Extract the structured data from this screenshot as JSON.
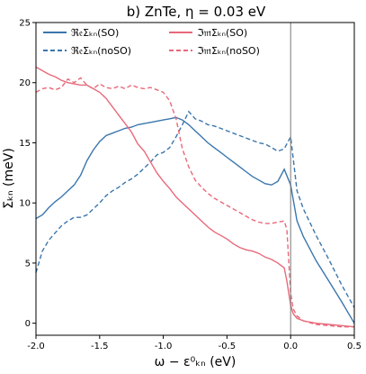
{
  "chart_data": {
    "type": "line",
    "title": "b) ZnTe, η = 0.03 eV",
    "xlabel": "ω − ε⁰ₖₙ (eV)",
    "ylabel": "Σₖₙ (meV)",
    "xlim": [
      -2.0,
      0.5
    ],
    "ylim": [
      -1,
      25
    ],
    "xticks": [
      "-2.0",
      "-1.5",
      "-1.0",
      "-0.5",
      "0.0",
      "0.5"
    ],
    "yticks": [
      "0",
      "5",
      "10",
      "15",
      "20",
      "25"
    ],
    "vline_x": 0.0,
    "grid": false,
    "legend_position": "top",
    "series": [
      {
        "name": "ℜ𝔢Σₖₙ(SO)",
        "color": "#3a76ad",
        "dash": "solid",
        "x": [
          -2.0,
          -1.95,
          -1.9,
          -1.85,
          -1.8,
          -1.75,
          -1.7,
          -1.65,
          -1.6,
          -1.55,
          -1.5,
          -1.45,
          -1.4,
          -1.35,
          -1.3,
          -1.25,
          -1.2,
          -1.15,
          -1.1,
          -1.05,
          -1.0,
          -0.95,
          -0.9,
          -0.85,
          -0.8,
          -0.75,
          -0.7,
          -0.65,
          -0.6,
          -0.55,
          -0.5,
          -0.45,
          -0.4,
          -0.35,
          -0.3,
          -0.25,
          -0.2,
          -0.15,
          -0.1,
          -0.05,
          0.0,
          0.05,
          0.1,
          0.2,
          0.3,
          0.4,
          0.5
        ],
        "values": [
          8.7,
          9.0,
          9.6,
          10.1,
          10.5,
          11.0,
          11.5,
          12.3,
          13.5,
          14.4,
          15.1,
          15.6,
          15.8,
          16.0,
          16.2,
          16.3,
          16.5,
          16.6,
          16.7,
          16.8,
          16.9,
          17.0,
          17.1,
          16.9,
          16.5,
          16.0,
          15.5,
          15.0,
          14.6,
          14.2,
          13.8,
          13.4,
          13.0,
          12.6,
          12.2,
          11.9,
          11.6,
          11.5,
          11.8,
          12.8,
          11.5,
          8.5,
          7.2,
          5.2,
          3.5,
          1.8,
          0.0
        ]
      },
      {
        "name": "ℜ𝔢Σₖₙ(noSO)",
        "color": "#3a76ad",
        "dash": "dashed",
        "x": [
          -2.0,
          -1.95,
          -1.9,
          -1.85,
          -1.8,
          -1.75,
          -1.7,
          -1.65,
          -1.6,
          -1.55,
          -1.5,
          -1.45,
          -1.4,
          -1.35,
          -1.3,
          -1.25,
          -1.2,
          -1.15,
          -1.1,
          -1.05,
          -1.0,
          -0.95,
          -0.9,
          -0.85,
          -0.8,
          -0.75,
          -0.7,
          -0.65,
          -0.6,
          -0.55,
          -0.5,
          -0.45,
          -0.4,
          -0.35,
          -0.3,
          -0.25,
          -0.2,
          -0.15,
          -0.1,
          -0.05,
          0.0,
          0.05,
          0.1,
          0.2,
          0.3,
          0.4,
          0.5
        ],
        "values": [
          4.2,
          6.0,
          6.9,
          7.5,
          8.1,
          8.5,
          8.8,
          8.8,
          9.0,
          9.5,
          10.0,
          10.6,
          11.0,
          11.3,
          11.7,
          12.0,
          12.4,
          12.9,
          13.4,
          14.0,
          14.2,
          14.6,
          15.5,
          16.5,
          17.6,
          17.0,
          16.8,
          16.5,
          16.4,
          16.2,
          16.0,
          15.8,
          15.6,
          15.4,
          15.2,
          15.0,
          14.9,
          14.6,
          14.3,
          14.5,
          15.5,
          11.0,
          9.5,
          7.3,
          5.3,
          3.2,
          1.3
        ]
      },
      {
        "name": "ℑ𝔪Σₖₙ(SO)",
        "color": "#e8697a",
        "dash": "solid",
        "x": [
          -2.0,
          -1.95,
          -1.9,
          -1.85,
          -1.8,
          -1.75,
          -1.7,
          -1.65,
          -1.6,
          -1.55,
          -1.5,
          -1.45,
          -1.4,
          -1.35,
          -1.3,
          -1.25,
          -1.2,
          -1.15,
          -1.1,
          -1.05,
          -1.0,
          -0.95,
          -0.9,
          -0.85,
          -0.8,
          -0.75,
          -0.7,
          -0.65,
          -0.6,
          -0.55,
          -0.5,
          -0.45,
          -0.4,
          -0.35,
          -0.3,
          -0.25,
          -0.2,
          -0.15,
          -0.1,
          -0.05,
          -0.03,
          0.0,
          0.02,
          0.05,
          0.1,
          0.2,
          0.3,
          0.4,
          0.5
        ],
        "values": [
          21.3,
          21.0,
          20.7,
          20.5,
          20.2,
          20.0,
          19.9,
          19.8,
          19.8,
          19.5,
          19.2,
          18.7,
          18.0,
          17.3,
          16.6,
          15.9,
          14.9,
          14.3,
          13.4,
          12.5,
          11.8,
          11.2,
          10.5,
          10.0,
          9.5,
          9.0,
          8.5,
          8.0,
          7.6,
          7.3,
          7.0,
          6.6,
          6.3,
          6.1,
          6.0,
          5.8,
          5.5,
          5.3,
          5.0,
          4.6,
          3.5,
          1.5,
          0.8,
          0.4,
          0.2,
          0.0,
          -0.1,
          -0.2,
          -0.3
        ]
      },
      {
        "name": "ℑ𝔪Σₖₙ(noSO)",
        "color": "#e8697a",
        "dash": "dashed",
        "x": [
          -2.0,
          -1.95,
          -1.9,
          -1.85,
          -1.8,
          -1.75,
          -1.7,
          -1.65,
          -1.6,
          -1.55,
          -1.5,
          -1.45,
          -1.4,
          -1.35,
          -1.3,
          -1.25,
          -1.2,
          -1.15,
          -1.1,
          -1.05,
          -1.0,
          -0.95,
          -0.9,
          -0.85,
          -0.8,
          -0.75,
          -0.7,
          -0.65,
          -0.6,
          -0.55,
          -0.5,
          -0.45,
          -0.4,
          -0.35,
          -0.3,
          -0.25,
          -0.2,
          -0.15,
          -0.1,
          -0.05,
          -0.03,
          0.0,
          0.02,
          0.05,
          0.1,
          0.2,
          0.3,
          0.4,
          0.5
        ],
        "values": [
          19.2,
          19.5,
          19.6,
          19.4,
          19.6,
          20.3,
          20.0,
          20.4,
          19.8,
          19.5,
          19.9,
          19.6,
          19.5,
          19.7,
          19.5,
          19.8,
          19.6,
          19.5,
          19.6,
          19.4,
          19.2,
          18.5,
          17.0,
          14.5,
          13.0,
          11.9,
          11.3,
          10.8,
          10.4,
          10.1,
          9.8,
          9.5,
          9.2,
          8.9,
          8.6,
          8.4,
          8.3,
          8.3,
          8.4,
          8.5,
          7.8,
          2.5,
          1.2,
          0.6,
          0.2,
          -0.1,
          -0.2,
          -0.3,
          -0.3
        ]
      }
    ]
  }
}
